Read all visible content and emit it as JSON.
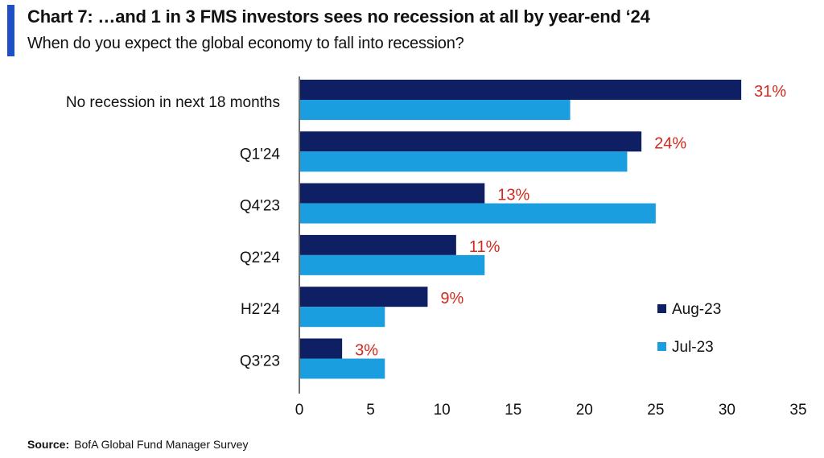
{
  "header": {
    "title": "Chart 7: …and 1 in 3 FMS investors sees no recession at all by year-end ‘24",
    "subtitle": "When do you expect the global economy to fall into recession?",
    "accent_color": "#1f4fc4"
  },
  "footer": {
    "source_label": "Source:",
    "source_text": "BofA Global Fund Manager Survey"
  },
  "chart_data": {
    "type": "bar",
    "orientation": "horizontal",
    "categories": [
      "No recession in next 18 months",
      "Q1'24",
      "Q4'23",
      "Q2'24",
      "H2'24",
      "Q3'23"
    ],
    "series": [
      {
        "name": "Aug-23",
        "values": [
          31,
          24,
          13,
          11,
          9,
          3
        ],
        "color": "#0f1f63"
      },
      {
        "name": "Jul-23",
        "values": [
          19,
          23,
          25,
          13,
          6,
          6
        ],
        "color": "#1a9ee0"
      }
    ],
    "data_labels": [
      "31%",
      "24%",
      "13%",
      "11%",
      "9%",
      "3%"
    ],
    "data_label_color": "#d42a1e",
    "xlim": [
      0,
      35
    ],
    "x_ticks": [
      0,
      5,
      10,
      15,
      20,
      25,
      30,
      35
    ],
    "grid": false,
    "legend_position": "bottom-right"
  }
}
